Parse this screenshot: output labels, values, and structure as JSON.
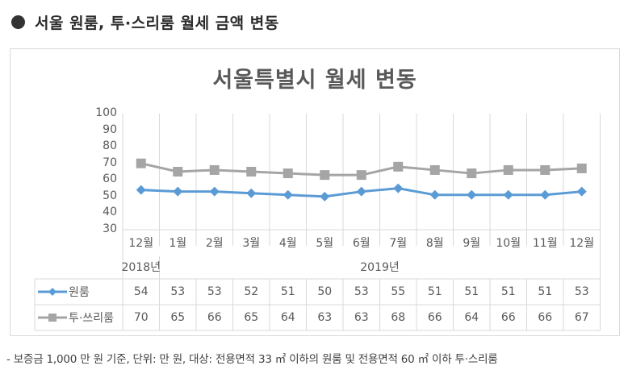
{
  "heading": {
    "bullet": "●",
    "text": "서울 원룸, 투·스리룸 월세 금액 변동"
  },
  "chart": {
    "title": "서울특별시 월세 변동",
    "y_ticks": [
      "100",
      "90",
      "80",
      "70",
      "60",
      "50",
      "40",
      "30"
    ],
    "months": [
      "12월",
      "1월",
      "2월",
      "3월",
      "4월",
      "5월",
      "6월",
      "7월",
      "8월",
      "9월",
      "10월",
      "11월",
      "12월"
    ],
    "years": [
      {
        "label": "2018년",
        "span": 1
      },
      {
        "label": "2019년",
        "span": 12
      }
    ],
    "series": [
      {
        "name": "원룸",
        "color": "#5b9bd5",
        "marker": "diamond",
        "values": [
          "54",
          "53",
          "53",
          "52",
          "51",
          "50",
          "53",
          "55",
          "51",
          "51",
          "51",
          "51",
          "53"
        ]
      },
      {
        "name": "투·쓰리룸",
        "color": "#a5a5a5",
        "marker": "square",
        "values": [
          "70",
          "65",
          "66",
          "65",
          "64",
          "63",
          "63",
          "68",
          "66",
          "64",
          "66",
          "66",
          "67"
        ]
      }
    ]
  },
  "footnote": "- 보증금 1,000 만 원 기준, 단위: 만 원, 대상: 전용면적 33 ㎡ 이하의 원룸 및 전용면적 60 ㎡ 이하 투·스리룸",
  "chart_data": {
    "type": "line",
    "title": "서울특별시 월세 변동",
    "categories": [
      "2018-12월",
      "2019-1월",
      "2019-2월",
      "2019-3월",
      "2019-4월",
      "2019-5월",
      "2019-6월",
      "2019-7월",
      "2019-8월",
      "2019-9월",
      "2019-10월",
      "2019-11월",
      "2019-12월"
    ],
    "series": [
      {
        "name": "원룸",
        "values": [
          54,
          53,
          53,
          52,
          51,
          50,
          53,
          55,
          51,
          51,
          51,
          51,
          53
        ]
      },
      {
        "name": "투·쓰리룸",
        "values": [
          70,
          65,
          66,
          65,
          64,
          63,
          63,
          68,
          66,
          64,
          66,
          66,
          67
        ]
      }
    ],
    "xlabel": "",
    "ylabel": "",
    "ylim": [
      30,
      100
    ],
    "yticks": [
      30,
      40,
      50,
      60,
      70,
      80,
      90,
      100
    ],
    "grid": "vertical",
    "legend_position": "data-table",
    "notes": "보증금 1,000 만 원 기준, 단위: 만 원"
  }
}
